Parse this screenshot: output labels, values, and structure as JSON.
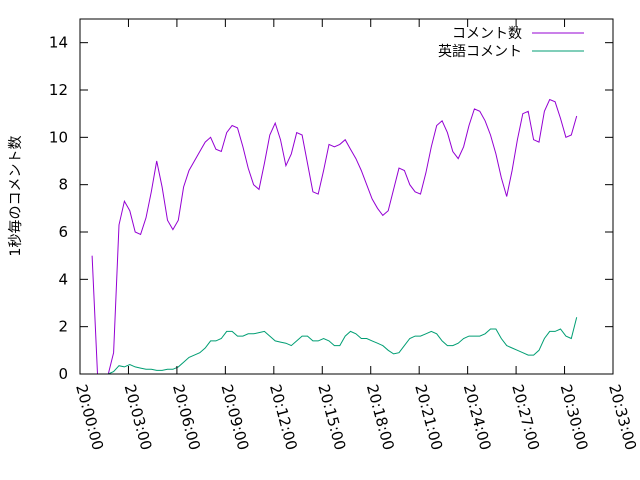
{
  "chart_data": {
    "type": "line",
    "title": "",
    "xlabel": "",
    "ylabel": "1秒毎のコメント数",
    "xlim": [
      "20:00:00",
      "20:33:00"
    ],
    "ylim": [
      0,
      15
    ],
    "x_ticks": [
      "20:00:00",
      "20:03:00",
      "20:06:00",
      "20:09:00",
      "20:12:00",
      "20:15:00",
      "20:18:00",
      "20:21:00",
      "20:24:00",
      "20:27:00",
      "20:30:00",
      "20:33:00"
    ],
    "y_ticks": [
      0,
      2,
      4,
      6,
      8,
      10,
      12,
      14
    ],
    "grid": false,
    "legend_position": "top-right",
    "x": [
      "20:00:45",
      "20:01:05",
      "20:01:25",
      "20:01:45",
      "20:02:05",
      "20:02:25",
      "20:02:45",
      "20:03:05",
      "20:03:25",
      "20:03:45",
      "20:04:05",
      "20:04:25",
      "20:04:45",
      "20:05:05",
      "20:05:25",
      "20:05:45",
      "20:06:05",
      "20:06:25",
      "20:06:45",
      "20:07:05",
      "20:07:25",
      "20:07:45",
      "20:08:05",
      "20:08:25",
      "20:08:45",
      "20:09:05",
      "20:09:25",
      "20:09:45",
      "20:10:05",
      "20:10:25",
      "20:10:45",
      "20:11:05",
      "20:11:25",
      "20:11:45",
      "20:12:05",
      "20:12:25",
      "20:12:45",
      "20:13:05",
      "20:13:25",
      "20:13:45",
      "20:14:05",
      "20:14:25",
      "20:14:45",
      "20:15:05",
      "20:15:25",
      "20:15:45",
      "20:16:05",
      "20:16:25",
      "20:16:45",
      "20:17:05",
      "20:17:25",
      "20:17:45",
      "20:18:05",
      "20:18:25",
      "20:18:45",
      "20:19:05",
      "20:19:25",
      "20:19:45",
      "20:20:05",
      "20:20:25",
      "20:20:45",
      "20:21:05",
      "20:21:25",
      "20:21:45",
      "20:22:05",
      "20:22:25",
      "20:22:45",
      "20:23:05",
      "20:23:25",
      "20:23:45",
      "20:24:05",
      "20:24:25",
      "20:24:45",
      "20:25:05",
      "20:25:25",
      "20:25:45",
      "20:26:05",
      "20:26:25",
      "20:26:45",
      "20:27:05",
      "20:27:25",
      "20:27:45",
      "20:28:05",
      "20:28:25",
      "20:28:45",
      "20:29:05",
      "20:29:25",
      "20:29:45",
      "20:30:05",
      "20:30:25",
      "20:30:45"
    ],
    "series": [
      {
        "name": "コメント数",
        "color": "#9400d3",
        "values": [
          5.0,
          0.0,
          0.0,
          0.0,
          0.9,
          6.3,
          7.3,
          6.9,
          6.0,
          5.9,
          6.6,
          7.7,
          9.0,
          7.9,
          6.5,
          6.1,
          6.5,
          7.9,
          8.6,
          9.0,
          9.4,
          9.8,
          10.0,
          9.5,
          9.4,
          10.2,
          10.5,
          10.4,
          9.6,
          8.7,
          8.0,
          7.8,
          8.9,
          10.1,
          10.6,
          9.9,
          8.8,
          9.3,
          10.2,
          10.1,
          8.9,
          7.7,
          7.6,
          8.6,
          9.7,
          9.6,
          9.7,
          9.9,
          9.5,
          9.1,
          8.6,
          8.0,
          7.4,
          7.0,
          6.7,
          6.9,
          7.8,
          8.7,
          8.6,
          8.0,
          7.7,
          7.6,
          8.5,
          9.6,
          10.5,
          10.7,
          10.2,
          9.4,
          9.1,
          9.6,
          10.5,
          11.2,
          11.1,
          10.7,
          10.1,
          9.3,
          8.3,
          7.5,
          8.6,
          9.9,
          11.0,
          11.1,
          9.9,
          9.8,
          11.1,
          11.6,
          11.5,
          10.8,
          10.0,
          10.1,
          10.9
        ]
      },
      {
        "name": "英語コメント",
        "color": "#009e73",
        "values": [
          0.0,
          0.0,
          0.0,
          0.0,
          0.1,
          0.35,
          0.3,
          0.4,
          0.3,
          0.25,
          0.2,
          0.2,
          0.15,
          0.15,
          0.2,
          0.2,
          0.3,
          0.5,
          0.7,
          0.8,
          0.9,
          1.1,
          1.4,
          1.4,
          1.5,
          1.8,
          1.8,
          1.6,
          1.6,
          1.7,
          1.7,
          1.75,
          1.8,
          1.6,
          1.4,
          1.35,
          1.3,
          1.2,
          1.4,
          1.6,
          1.6,
          1.4,
          1.4,
          1.5,
          1.4,
          1.2,
          1.2,
          1.6,
          1.8,
          1.7,
          1.5,
          1.5,
          1.4,
          1.3,
          1.2,
          1.0,
          0.85,
          0.9,
          1.2,
          1.5,
          1.6,
          1.6,
          1.7,
          1.8,
          1.7,
          1.4,
          1.2,
          1.2,
          1.3,
          1.5,
          1.6,
          1.6,
          1.6,
          1.7,
          1.9,
          1.9,
          1.5,
          1.2,
          1.1,
          1.0,
          0.9,
          0.8,
          0.8,
          1.0,
          1.5,
          1.8,
          1.8,
          1.9,
          1.6,
          1.5,
          2.4
        ]
      }
    ]
  }
}
